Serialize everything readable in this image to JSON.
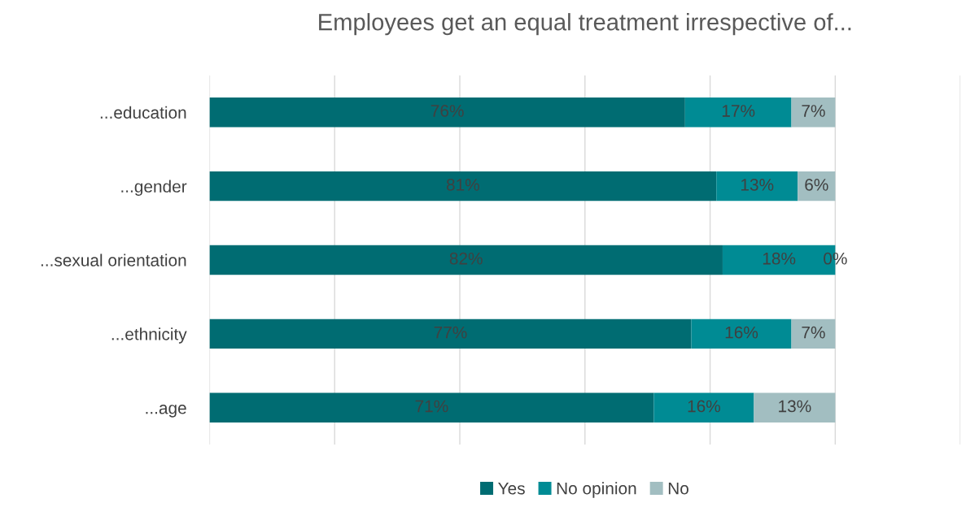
{
  "chart_data": {
    "type": "bar",
    "orientation": "horizontal",
    "stacked": true,
    "title": "Employees get an equal treatment irrespective of...",
    "categories": [
      "...education",
      "...gender",
      "...sexual orientation",
      "...ethnicity",
      "...age"
    ],
    "series": [
      {
        "name": "Yes",
        "color": "#006c72",
        "values": [
          76,
          81,
          82,
          77,
          71
        ],
        "value_labels": [
          "76%",
          "81%",
          "82%",
          "77%",
          "71%"
        ]
      },
      {
        "name": "No opinion",
        "color": "#008b94",
        "values": [
          17,
          13,
          18,
          16,
          16
        ],
        "value_labels": [
          "17%",
          "13%",
          "18%",
          "16%",
          "16%"
        ]
      },
      {
        "name": "No",
        "color": "#a2bec1",
        "values": [
          7,
          6,
          0,
          7,
          13
        ],
        "value_labels": [
          "7%",
          "6%",
          "0%",
          "7%",
          "13%"
        ]
      }
    ],
    "tick_labels": "y",
    "grid": "x",
    "legend": "bottom"
  }
}
